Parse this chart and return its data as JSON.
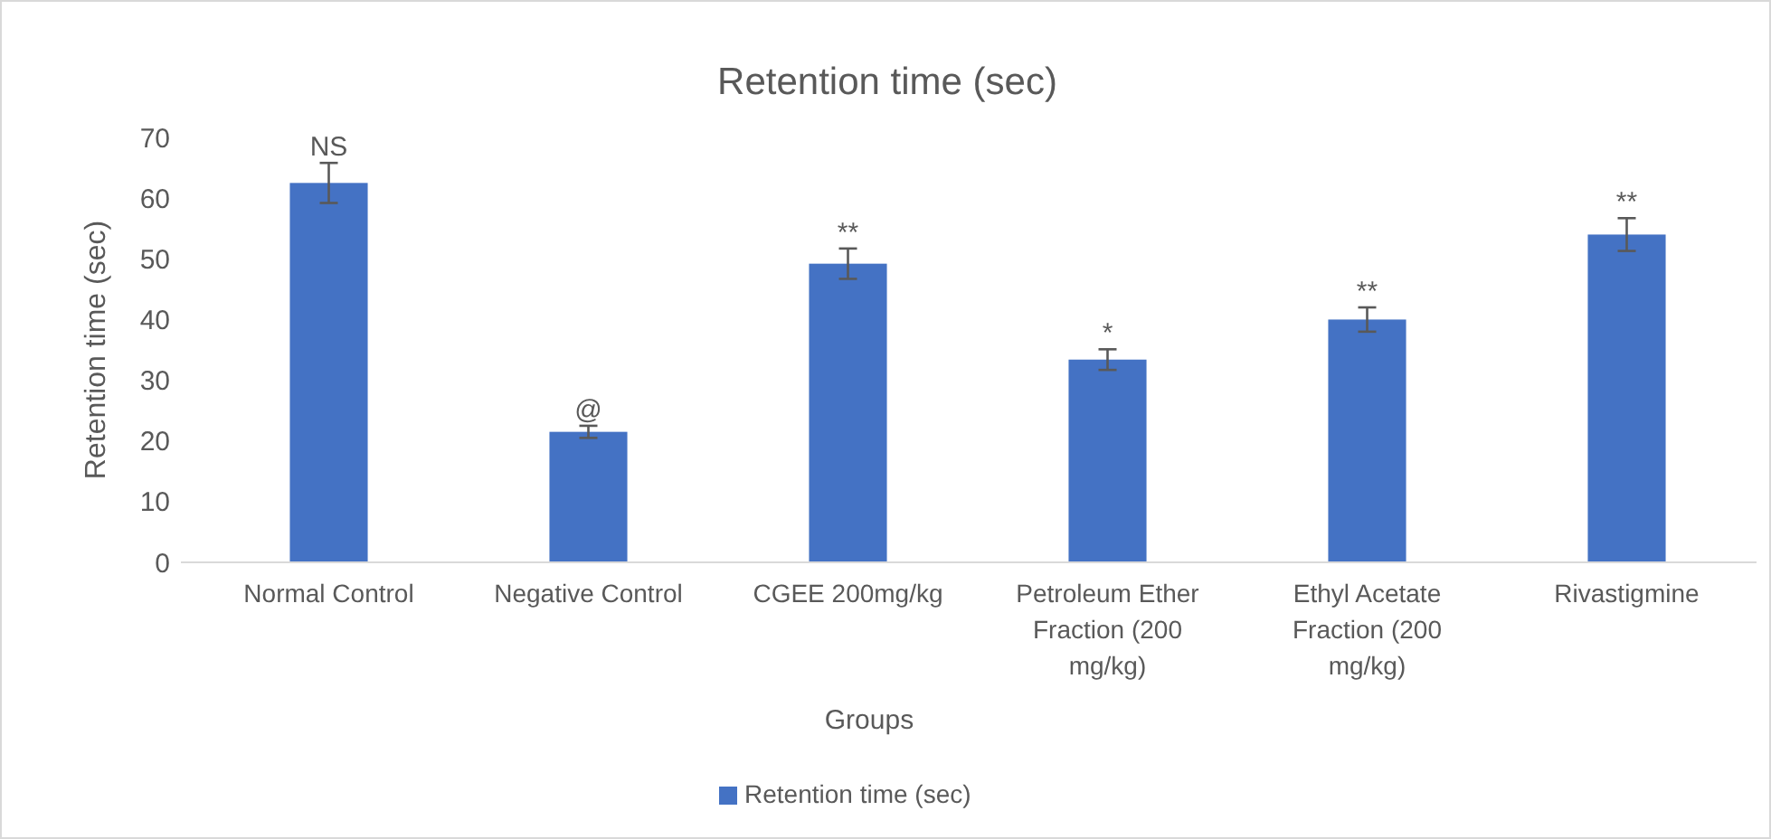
{
  "chart_data": {
    "type": "bar",
    "title": "Retention time (sec)",
    "xlabel": "Groups",
    "ylabel": "Retention time (sec)",
    "categories": [
      "Normal Control",
      "Negative Control",
      "CGEE 200mg/kg",
      "Petroleum Ether Fraction (200 mg/kg)",
      "Ethyl Acetate Fraction (200 mg/kg)",
      "Rivastigmine"
    ],
    "series": [
      {
        "name": "Retention time (sec)",
        "color": "#4472c4",
        "values": [
          62.5,
          21.5,
          49.2,
          33.4,
          40,
          54
        ],
        "errors": [
          3.3,
          1,
          2.5,
          1.7,
          2,
          2.7
        ]
      }
    ],
    "ylim": [
      0,
      70
    ],
    "yticks": [
      0,
      10,
      20,
      30,
      40,
      50,
      60,
      70
    ],
    "grid": false,
    "legend": "bottom",
    "annotations": [
      {
        "text": "NS",
        "x": "Normal Control",
        "y": 65.8
      },
      {
        "text": "@",
        "x": "Negative Control",
        "y": 22.5
      },
      {
        "text": "**",
        "x": "CGEE 200mg/kg",
        "y": 51.7
      },
      {
        "text": "*",
        "x": "Petroleum Ether Fraction (200 mg/kg)",
        "y": 35.1
      },
      {
        "text": "**",
        "x": "Ethyl Acetate Fraction (200 mg/kg)",
        "y": 42
      },
      {
        "text": "**",
        "x": "Rivastigmine",
        "y": 56.7
      }
    ]
  }
}
